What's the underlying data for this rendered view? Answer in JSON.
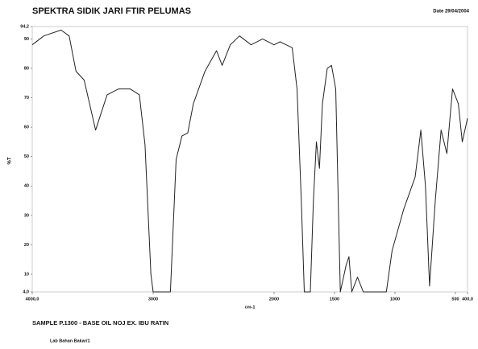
{
  "chart_data": {
    "type": "line",
    "title": "SPEKTRA SIDIK JARI FTIR PELUMAS",
    "date": "Date 29/04/2004",
    "y_label": "%T",
    "x_label": "cm-1",
    "sample": "SAMPLE P.1300 - BASE OIL NOJ EX. IBU RATIN",
    "lab": "Lab Bahan Bakar/1",
    "xlim": [
      4000,
      400
    ],
    "ylim": [
      4,
      94.2
    ],
    "xticks": [
      {
        "value": 4000,
        "label": "4000,0"
      },
      3000,
      2000,
      1500,
      1000,
      500,
      {
        "value": 400,
        "label": "400,0"
      }
    ],
    "yticks": [
      {
        "value": 4,
        "label": "4,0"
      },
      10,
      20,
      30,
      40,
      50,
      60,
      70,
      80,
      90,
      {
        "value": 94.2,
        "label": "94,2"
      }
    ],
    "series": [
      {
        "name": "%T",
        "color": "#222222",
        "x": [
          4000,
          3905,
          3762,
          3695,
          3638,
          3571,
          3476,
          3429,
          3381,
          3286,
          3190,
          3114,
          3067,
          3019,
          3000,
          2857,
          2810,
          2762,
          2714,
          2667,
          2571,
          2476,
          2429,
          2362,
          2286,
          2190,
          2095,
          2000,
          1950,
          1900,
          1850,
          1810,
          1775,
          1750,
          1700,
          1675,
          1650,
          1625,
          1600,
          1560,
          1525,
          1490,
          1452,
          1405,
          1381,
          1357,
          1310,
          1262,
          1071,
          1024,
          929,
          833,
          786,
          748,
          714,
          667,
          619,
          571,
          524,
          476,
          443,
          400
        ],
        "values": [
          88,
          91,
          93,
          91,
          79,
          76,
          59,
          65,
          71,
          73,
          73,
          71,
          54,
          10,
          4,
          4,
          49,
          57,
          58,
          68,
          79,
          86,
          81,
          88,
          91,
          88,
          90,
          88,
          89,
          88,
          87,
          73,
          35,
          4,
          4,
          35,
          55,
          46,
          68,
          80,
          81,
          73,
          4,
          13,
          16,
          4,
          9,
          4,
          4,
          18,
          32,
          43,
          59,
          40,
          6,
          35,
          59,
          51,
          73,
          68,
          55,
          63
        ]
      }
    ]
  }
}
